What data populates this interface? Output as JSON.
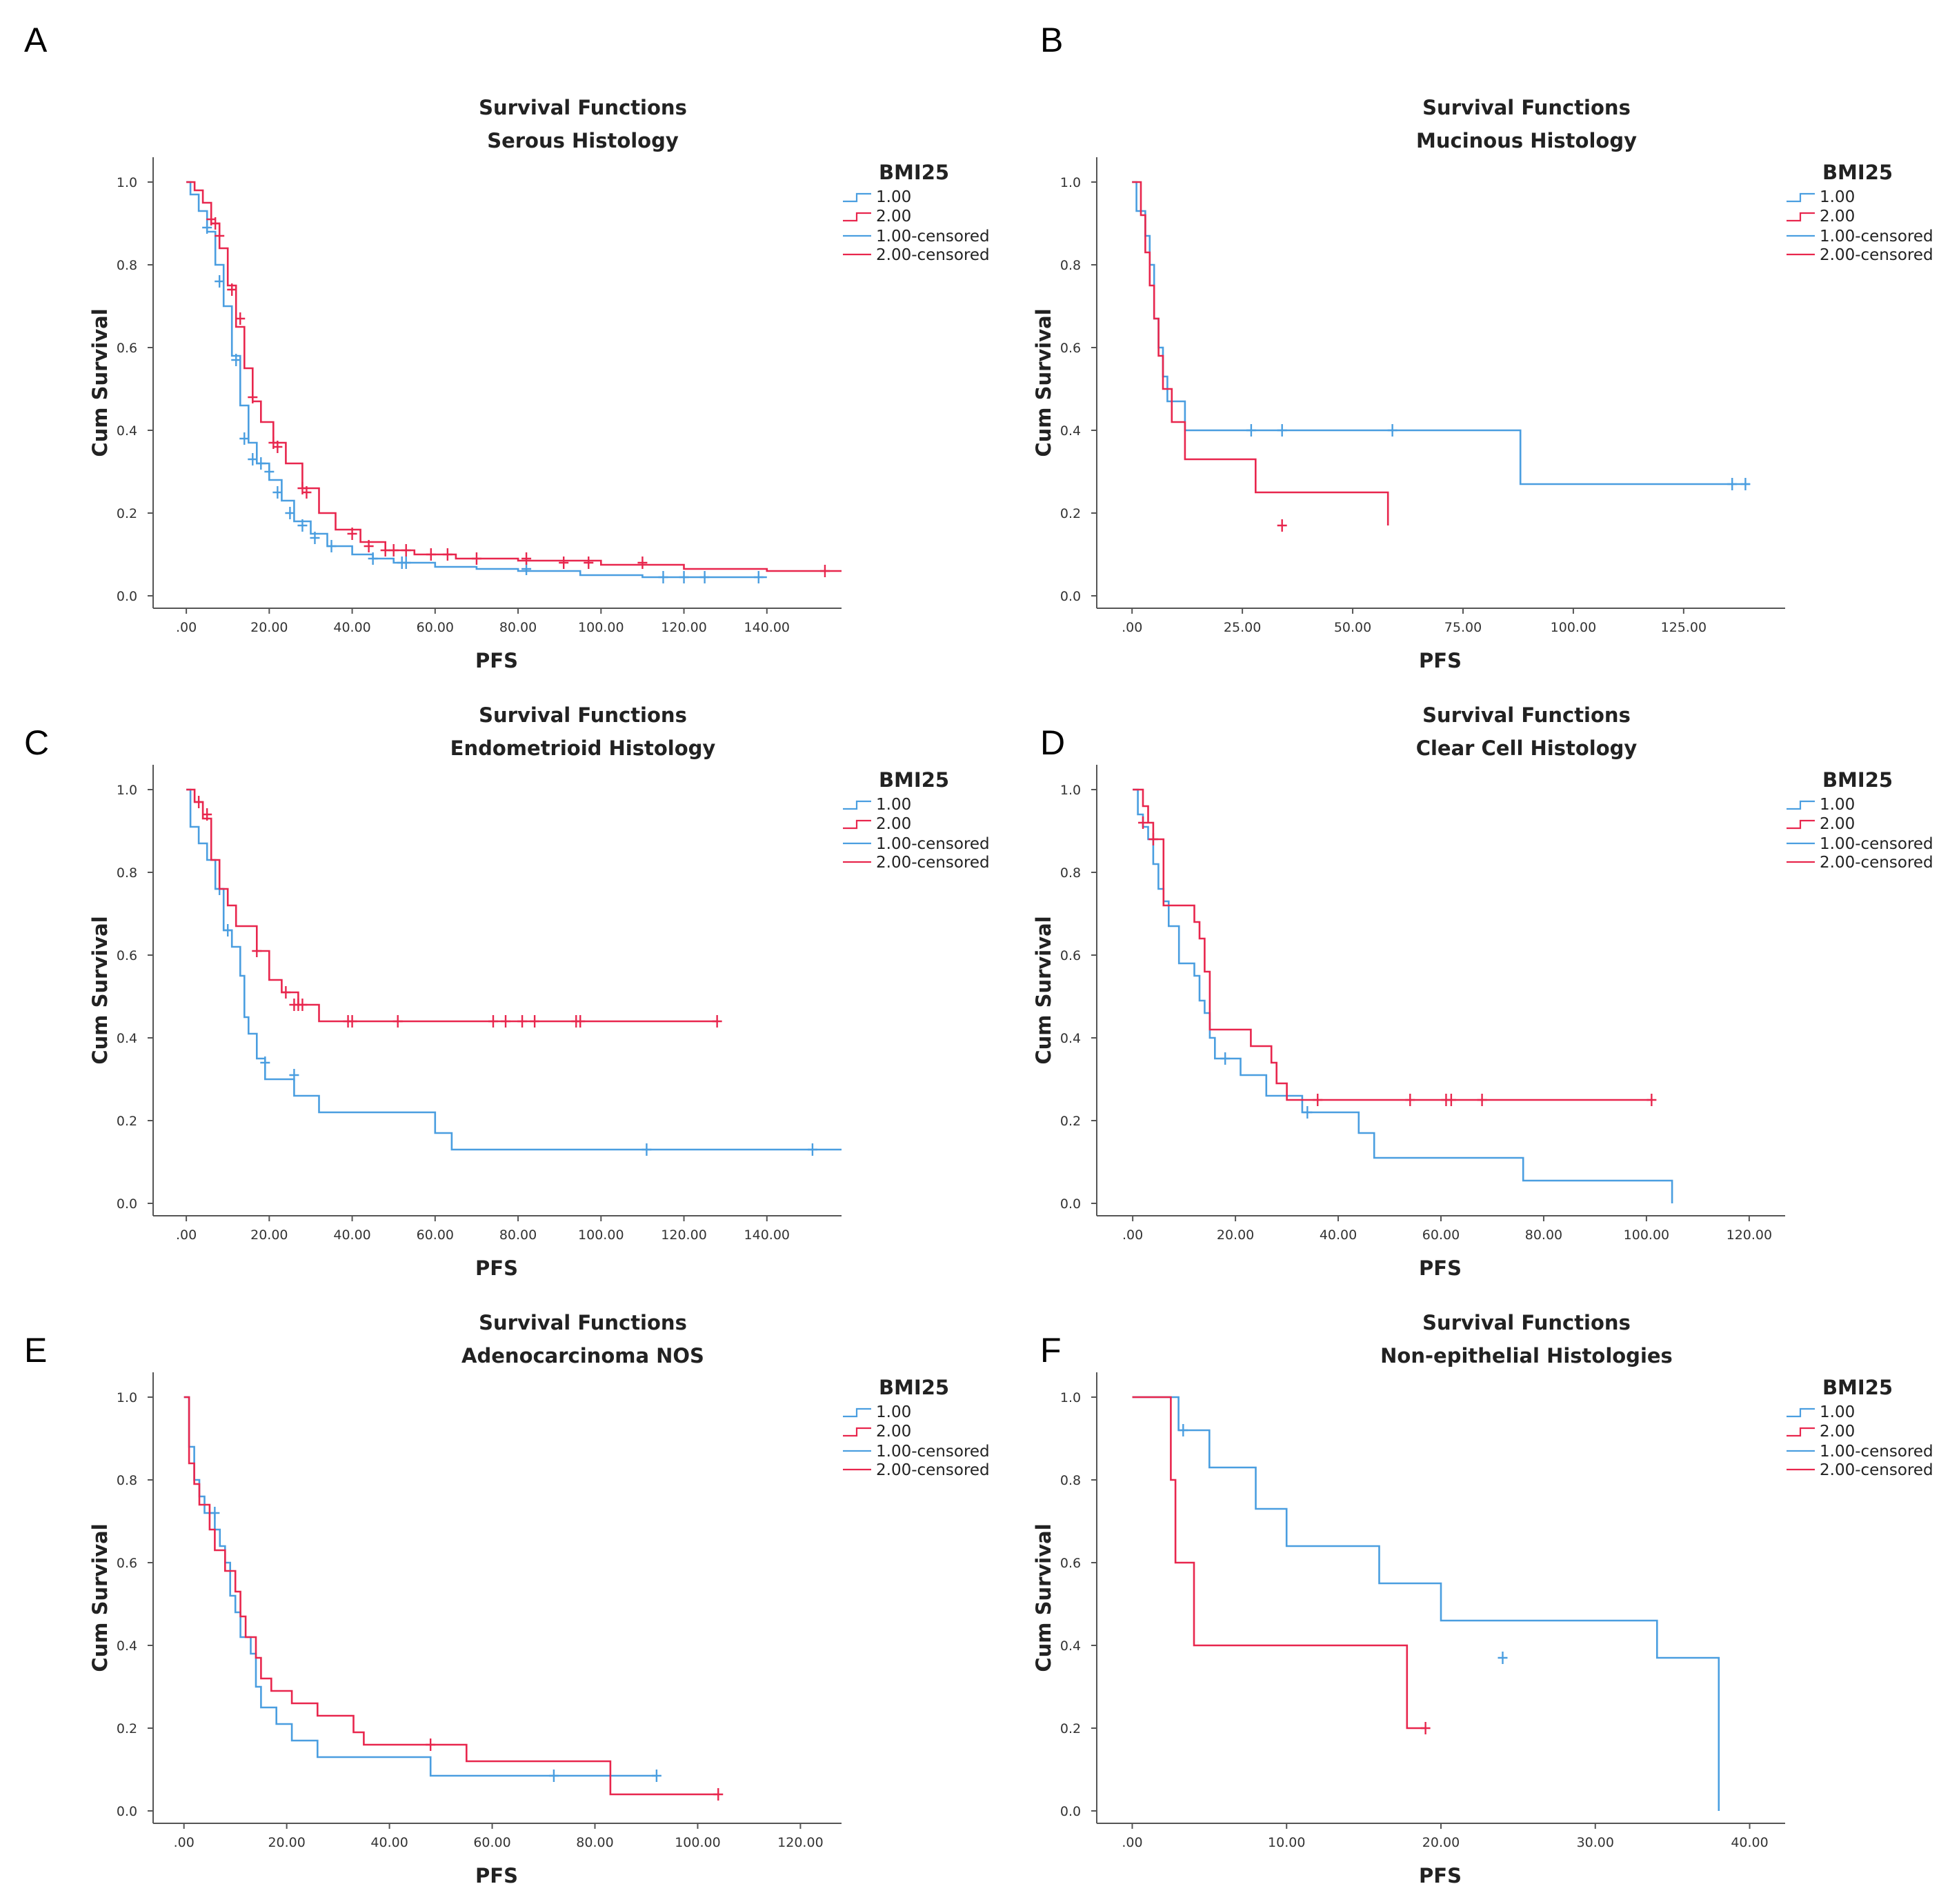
{
  "colors": {
    "series1": "#4a9ee0",
    "series2": "#e8264d",
    "axis": "#555555"
  },
  "chart_data": [
    {
      "panel": "A",
      "type": "line",
      "title": "Survival Functions",
      "subtitle": "Serous Histology",
      "xlabel": "PFS",
      "ylabel": "Cum Survival",
      "xlim": [
        -8,
        158
      ],
      "ylim": [
        -0.03,
        1.06
      ],
      "xticks": [
        0,
        20,
        40,
        60,
        80,
        100,
        120,
        140
      ],
      "xtick_labels": [
        ".00",
        "20.00",
        "40.00",
        "60.00",
        "80.00",
        "100.00",
        "120.00",
        "140.00"
      ],
      "yticks": [
        0,
        0.2,
        0.4,
        0.6,
        0.8,
        1.0
      ],
      "ytick_labels": [
        "0.0",
        "0.2",
        "0.4",
        "0.6",
        "0.8",
        "1.0"
      ],
      "legend": {
        "title": "BMI25",
        "entries": [
          "1.00",
          "2.00",
          "1.00-censored",
          "2.00-censored"
        ]
      },
      "series": [
        {
          "name": "1.00",
          "x": [
            0,
            1,
            3,
            5,
            7,
            9,
            11,
            13,
            15,
            17,
            20,
            23,
            26,
            30,
            34,
            40,
            45,
            50,
            60,
            70,
            80,
            95,
            110,
            125,
            140
          ],
          "y": [
            1.0,
            0.97,
            0.93,
            0.88,
            0.8,
            0.7,
            0.58,
            0.46,
            0.37,
            0.32,
            0.28,
            0.23,
            0.18,
            0.15,
            0.12,
            0.1,
            0.09,
            0.08,
            0.07,
            0.065,
            0.06,
            0.05,
            0.045,
            0.045,
            0.045
          ],
          "censored_x": [
            5,
            8,
            12,
            14,
            16,
            18,
            20,
            22,
            25,
            28,
            31,
            35,
            45,
            52,
            53,
            82,
            115,
            120,
            125,
            138
          ],
          "censored_y": [
            0.89,
            0.76,
            0.57,
            0.38,
            0.33,
            0.32,
            0.3,
            0.25,
            0.2,
            0.17,
            0.14,
            0.12,
            0.09,
            0.08,
            0.08,
            0.065,
            0.045,
            0.045,
            0.045,
            0.045
          ]
        },
        {
          "name": "2.00",
          "x": [
            0,
            2,
            4,
            6,
            8,
            10,
            12,
            14,
            16,
            18,
            21,
            24,
            28,
            32,
            36,
            42,
            48,
            55,
            65,
            80,
            100,
            120,
            140,
            158
          ],
          "y": [
            1.0,
            0.98,
            0.95,
            0.9,
            0.84,
            0.75,
            0.65,
            0.55,
            0.47,
            0.42,
            0.37,
            0.32,
            0.26,
            0.2,
            0.16,
            0.13,
            0.11,
            0.1,
            0.09,
            0.085,
            0.075,
            0.065,
            0.06,
            0.06
          ],
          "censored_x": [
            6,
            7,
            8,
            11,
            13,
            16,
            21,
            22,
            28,
            29,
            40,
            44,
            48,
            50,
            53,
            59,
            63,
            70,
            82,
            91,
            97,
            110,
            154
          ],
          "censored_y": [
            0.91,
            0.9,
            0.87,
            0.74,
            0.67,
            0.48,
            0.37,
            0.36,
            0.26,
            0.25,
            0.15,
            0.12,
            0.11,
            0.11,
            0.11,
            0.1,
            0.1,
            0.09,
            0.09,
            0.08,
            0.08,
            0.08,
            0.06
          ]
        }
      ]
    },
    {
      "panel": "B",
      "type": "line",
      "title": "Survival Functions",
      "subtitle": "Mucinous Histology",
      "xlabel": "PFS",
      "ylabel": "Cum Survival",
      "xlim": [
        -8,
        148
      ],
      "ylim": [
        -0.03,
        1.06
      ],
      "xticks": [
        0,
        25,
        50,
        75,
        100,
        125
      ],
      "xtick_labels": [
        ".00",
        "25.00",
        "50.00",
        "75.00",
        "100.00",
        "125.00"
      ],
      "yticks": [
        0,
        0.2,
        0.4,
        0.6,
        0.8,
        1.0
      ],
      "ytick_labels": [
        "0.0",
        "0.2",
        "0.4",
        "0.6",
        "0.8",
        "1.0"
      ],
      "legend": {
        "title": "BMI25",
        "entries": [
          "1.00",
          "2.00",
          "1.00-censored",
          "2.00-censored"
        ]
      },
      "series": [
        {
          "name": "1.00",
          "x": [
            0,
            1,
            3,
            4,
            5,
            6,
            7,
            8,
            12,
            88,
            140
          ],
          "y": [
            1.0,
            0.93,
            0.87,
            0.8,
            0.67,
            0.6,
            0.53,
            0.47,
            0.4,
            0.27,
            0.27
          ],
          "censored_x": [
            27,
            34,
            59,
            136,
            139
          ],
          "censored_y": [
            0.4,
            0.4,
            0.4,
            0.27,
            0.27
          ]
        },
        {
          "name": "2.00",
          "x": [
            0,
            2,
            3,
            4,
            5,
            6,
            7,
            9,
            12,
            28,
            58
          ],
          "y": [
            1.0,
            0.92,
            0.83,
            0.75,
            0.67,
            0.58,
            0.5,
            0.42,
            0.33,
            0.25,
            0.17
          ],
          "censored_x": [
            34
          ],
          "censored_y": [
            0.17
          ]
        }
      ]
    },
    {
      "panel": "C",
      "type": "line",
      "title": "Survival Functions",
      "subtitle": "Endometrioid Histology",
      "xlabel": "PFS",
      "ylabel": "Cum Survival",
      "xlim": [
        -8,
        158
      ],
      "ylim": [
        -0.03,
        1.06
      ],
      "xticks": [
        0,
        20,
        40,
        60,
        80,
        100,
        120,
        140
      ],
      "xtick_labels": [
        ".00",
        "20.00",
        "40.00",
        "60.00",
        "80.00",
        "100.00",
        "120.00",
        "140.00"
      ],
      "yticks": [
        0,
        0.2,
        0.4,
        0.6,
        0.8,
        1.0
      ],
      "ytick_labels": [
        "0.0",
        "0.2",
        "0.4",
        "0.6",
        "0.8",
        "1.0"
      ],
      "legend": {
        "title": "BMI25",
        "entries": [
          "1.00",
          "2.00",
          "1.00-censored",
          "2.00-censored"
        ]
      },
      "series": [
        {
          "name": "1.00",
          "x": [
            0,
            1,
            3,
            5,
            7,
            9,
            11,
            13,
            14,
            15,
            17,
            19,
            22,
            26,
            32,
            60,
            64,
            158
          ],
          "y": [
            1.0,
            0.91,
            0.87,
            0.83,
            0.76,
            0.66,
            0.62,
            0.55,
            0.45,
            0.41,
            0.35,
            0.3,
            0.3,
            0.26,
            0.22,
            0.17,
            0.13,
            0.13
          ],
          "censored_x": [
            8,
            10,
            19,
            26,
            111,
            151
          ],
          "censored_y": [
            0.76,
            0.66,
            0.34,
            0.31,
            0.13,
            0.13
          ]
        },
        {
          "name": "2.00",
          "x": [
            0,
            2,
            4,
            6,
            8,
            10,
            12,
            17,
            20,
            23,
            27,
            32,
            128
          ],
          "y": [
            1.0,
            0.97,
            0.93,
            0.83,
            0.76,
            0.72,
            0.67,
            0.61,
            0.54,
            0.51,
            0.48,
            0.44,
            0.44
          ],
          "censored_x": [
            3,
            5,
            17,
            24,
            26,
            27,
            28,
            39,
            40,
            51,
            74,
            77,
            81,
            84,
            94,
            95,
            128
          ],
          "censored_y": [
            0.97,
            0.94,
            0.61,
            0.51,
            0.48,
            0.48,
            0.48,
            0.44,
            0.44,
            0.44,
            0.44,
            0.44,
            0.44,
            0.44,
            0.44,
            0.44,
            0.44
          ]
        }
      ]
    },
    {
      "panel": "D",
      "type": "line",
      "title": "Survival Functions",
      "subtitle": "Clear Cell Histology",
      "xlabel": "PFS",
      "ylabel": "Cum Survival",
      "xlim": [
        -7,
        127
      ],
      "ylim": [
        -0.03,
        1.06
      ],
      "xticks": [
        0,
        20,
        40,
        60,
        80,
        100,
        120
      ],
      "xtick_labels": [
        ".00",
        "20.00",
        "40.00",
        "60.00",
        "80.00",
        "100.00",
        "120.00"
      ],
      "yticks": [
        0,
        0.2,
        0.4,
        0.6,
        0.8,
        1.0
      ],
      "ytick_labels": [
        "0.0",
        "0.2",
        "0.4",
        "0.6",
        "0.8",
        "1.0"
      ],
      "legend": {
        "title": "BMI25",
        "entries": [
          "1.00",
          "2.00",
          "1.00-censored",
          "2.00-censored"
        ]
      },
      "series": [
        {
          "name": "1.00",
          "x": [
            0,
            1,
            2,
            3,
            4,
            5,
            6,
            7,
            9,
            12,
            13,
            14,
            15,
            16,
            18,
            21,
            26,
            33,
            40,
            44,
            47,
            76,
            105,
            105
          ],
          "y": [
            1.0,
            0.94,
            0.91,
            0.88,
            0.82,
            0.76,
            0.73,
            0.67,
            0.58,
            0.55,
            0.49,
            0.46,
            0.4,
            0.35,
            0.35,
            0.31,
            0.26,
            0.22,
            0.22,
            0.17,
            0.11,
            0.055,
            0.055,
            0.0
          ],
          "censored_x": [
            18,
            34
          ],
          "censored_y": [
            0.35,
            0.22
          ]
        },
        {
          "name": "2.00",
          "x": [
            0,
            2,
            3,
            4,
            6,
            12,
            13,
            14,
            15,
            23,
            27,
            28,
            30,
            101
          ],
          "y": [
            1.0,
            0.96,
            0.92,
            0.88,
            0.72,
            0.68,
            0.64,
            0.56,
            0.42,
            0.38,
            0.34,
            0.29,
            0.25,
            0.25
          ],
          "censored_x": [
            2,
            4,
            36,
            54,
            61,
            62,
            68,
            101
          ],
          "censored_y": [
            0.92,
            0.88,
            0.25,
            0.25,
            0.25,
            0.25,
            0.25,
            0.25
          ]
        }
      ]
    },
    {
      "panel": "E",
      "type": "line",
      "title": "Survival Functions",
      "subtitle": "Adenocarcinoma NOS",
      "xlabel": "PFS",
      "ylabel": "Cum Survival",
      "xlim": [
        -6,
        128
      ],
      "ylim": [
        -0.03,
        1.06
      ],
      "xticks": [
        0,
        20,
        40,
        60,
        80,
        100,
        120
      ],
      "xtick_labels": [
        ".00",
        "20.00",
        "40.00",
        "60.00",
        "80.00",
        "100.00",
        "120.00"
      ],
      "yticks": [
        0,
        0.2,
        0.4,
        0.6,
        0.8,
        1.0
      ],
      "ytick_labels": [
        "0.0",
        "0.2",
        "0.4",
        "0.6",
        "0.8",
        "1.0"
      ],
      "legend": {
        "title": "BMI25",
        "entries": [
          "1.00",
          "2.00",
          "1.00-censored",
          "2.00-censored"
        ]
      },
      "series": [
        {
          "name": "1.00",
          "x": [
            0,
            1,
            2,
            3,
            4,
            6,
            7,
            8,
            9,
            10,
            11,
            13,
            14,
            15,
            18,
            21,
            26,
            48,
            80,
            92
          ],
          "y": [
            1.0,
            0.88,
            0.8,
            0.76,
            0.72,
            0.68,
            0.64,
            0.6,
            0.52,
            0.48,
            0.42,
            0.38,
            0.3,
            0.25,
            0.21,
            0.17,
            0.13,
            0.085,
            0.085,
            0.085
          ],
          "censored_x": [
            6,
            72,
            92
          ],
          "censored_y": [
            0.72,
            0.085,
            0.085
          ]
        },
        {
          "name": "2.00",
          "x": [
            0,
            1,
            2,
            3,
            5,
            6,
            8,
            10,
            11,
            12,
            14,
            15,
            17,
            21,
            26,
            33,
            35,
            55,
            83,
            104
          ],
          "y": [
            1.0,
            0.84,
            0.79,
            0.74,
            0.68,
            0.63,
            0.58,
            0.53,
            0.47,
            0.42,
            0.37,
            0.32,
            0.29,
            0.26,
            0.23,
            0.19,
            0.16,
            0.12,
            0.04,
            0.04
          ],
          "censored_x": [
            48,
            104
          ],
          "censored_y": [
            0.16,
            0.04
          ]
        }
      ]
    },
    {
      "panel": "F",
      "type": "line",
      "title": "Survival Functions",
      "subtitle": "Non-epithelial Histologies",
      "xlabel": "PFS",
      "ylabel": "Cum Survival",
      "xlim": [
        -2.3,
        42.3
      ],
      "ylim": [
        -0.03,
        1.06
      ],
      "xticks": [
        0,
        10,
        20,
        30,
        40
      ],
      "xtick_labels": [
        ".00",
        "10.00",
        "20.00",
        "30.00",
        "40.00"
      ],
      "yticks": [
        0,
        0.2,
        0.4,
        0.6,
        0.8,
        1.0
      ],
      "ytick_labels": [
        "0.0",
        "0.2",
        "0.4",
        "0.6",
        "0.8",
        "1.0"
      ],
      "legend": {
        "title": "BMI25",
        "entries": [
          "1.00",
          "2.00",
          "1.00-censored",
          "2.00-censored"
        ]
      },
      "series": [
        {
          "name": "1.00",
          "x": [
            0,
            3,
            5,
            8,
            10,
            16,
            20,
            34,
            38,
            38
          ],
          "y": [
            1.0,
            0.92,
            0.83,
            0.73,
            0.64,
            0.55,
            0.46,
            0.37,
            0.18,
            0.0
          ],
          "censored_x": [
            3.3,
            24
          ],
          "censored_y": [
            0.92,
            0.37
          ]
        },
        {
          "name": "2.00",
          "x": [
            0,
            2.5,
            2.8,
            4,
            17.8,
            19
          ],
          "y": [
            1.0,
            0.8,
            0.6,
            0.4,
            0.2,
            0.2
          ],
          "censored_x": [
            19
          ],
          "censored_y": [
            0.2
          ]
        }
      ]
    }
  ]
}
